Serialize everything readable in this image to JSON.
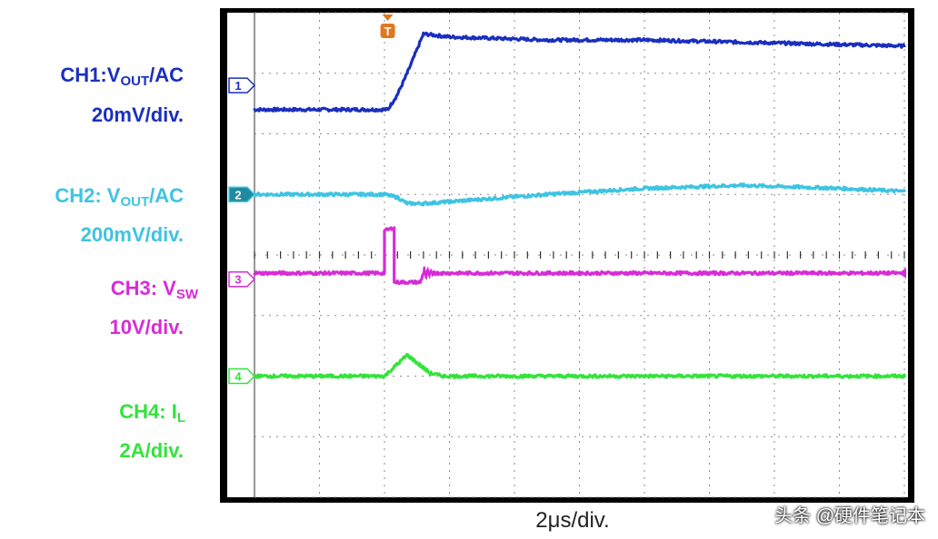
{
  "chart_data": {
    "type": "line",
    "title": "",
    "xlabel": "2μs/div.",
    "ylabel": "",
    "grid": true,
    "x_unit": "div",
    "xlim": [
      0,
      10
    ],
    "ylim": [
      -4,
      4
    ],
    "trigger_marker": "T",
    "trigger_time_div": 2.05,
    "series": [
      {
        "name": "CH1",
        "label_parts": [
          "CH1:V",
          "OUT",
          "/AC"
        ],
        "scale": "20mV/div.",
        "color": "#1a2fbf",
        "marker": "1",
        "marker_level": 2.8,
        "points": [
          [
            0,
            2.4
          ],
          [
            2.05,
            2.4
          ],
          [
            2.2,
            2.65
          ],
          [
            2.35,
            3.0
          ],
          [
            2.6,
            3.65
          ],
          [
            3.0,
            3.6
          ],
          [
            4.5,
            3.55
          ],
          [
            6.0,
            3.55
          ],
          [
            8.0,
            3.5
          ],
          [
            10,
            3.45
          ]
        ]
      },
      {
        "name": "CH2",
        "label_parts": [
          "CH2: V",
          "OUT",
          "/AC"
        ],
        "scale": "200mV/div.",
        "color": "#3ec4e2",
        "marker": "2",
        "marker_level": 1.0,
        "points": [
          [
            0,
            1.0
          ],
          [
            2.0,
            1.0
          ],
          [
            2.2,
            0.95
          ],
          [
            2.35,
            0.85
          ],
          [
            2.6,
            0.85
          ],
          [
            3.0,
            0.88
          ],
          [
            4.5,
            1.0
          ],
          [
            6.0,
            1.1
          ],
          [
            7.5,
            1.15
          ],
          [
            9.0,
            1.1
          ],
          [
            10,
            1.05
          ]
        ]
      },
      {
        "name": "CH3",
        "label_parts": [
          "CH3: V",
          "SW",
          ""
        ],
        "scale": "10V/div.",
        "color": "#d82bd8",
        "marker": "3",
        "marker_level": -0.4,
        "points": [
          [
            0,
            -0.3
          ],
          [
            2.0,
            -0.3
          ],
          [
            2.0,
            0.4
          ],
          [
            2.15,
            0.45
          ],
          [
            2.15,
            -0.45
          ],
          [
            2.55,
            -0.45
          ],
          [
            2.6,
            -0.3
          ],
          [
            3.0,
            -0.3
          ],
          [
            6.0,
            -0.3
          ],
          [
            10,
            -0.3
          ]
        ]
      },
      {
        "name": "CH4",
        "label_parts": [
          "CH4: I",
          "L",
          ""
        ],
        "scale": "2A/div.",
        "color": "#33e33a",
        "marker": "4",
        "marker_level": -2.0,
        "points": [
          [
            0,
            -2.0
          ],
          [
            2.0,
            -2.0
          ],
          [
            2.2,
            -1.8
          ],
          [
            2.35,
            -1.65
          ],
          [
            2.7,
            -1.95
          ],
          [
            2.9,
            -2.0
          ],
          [
            6.0,
            -2.0
          ],
          [
            10,
            -2.0
          ]
        ]
      }
    ]
  },
  "watermark": "头条 @硬件笔记本"
}
